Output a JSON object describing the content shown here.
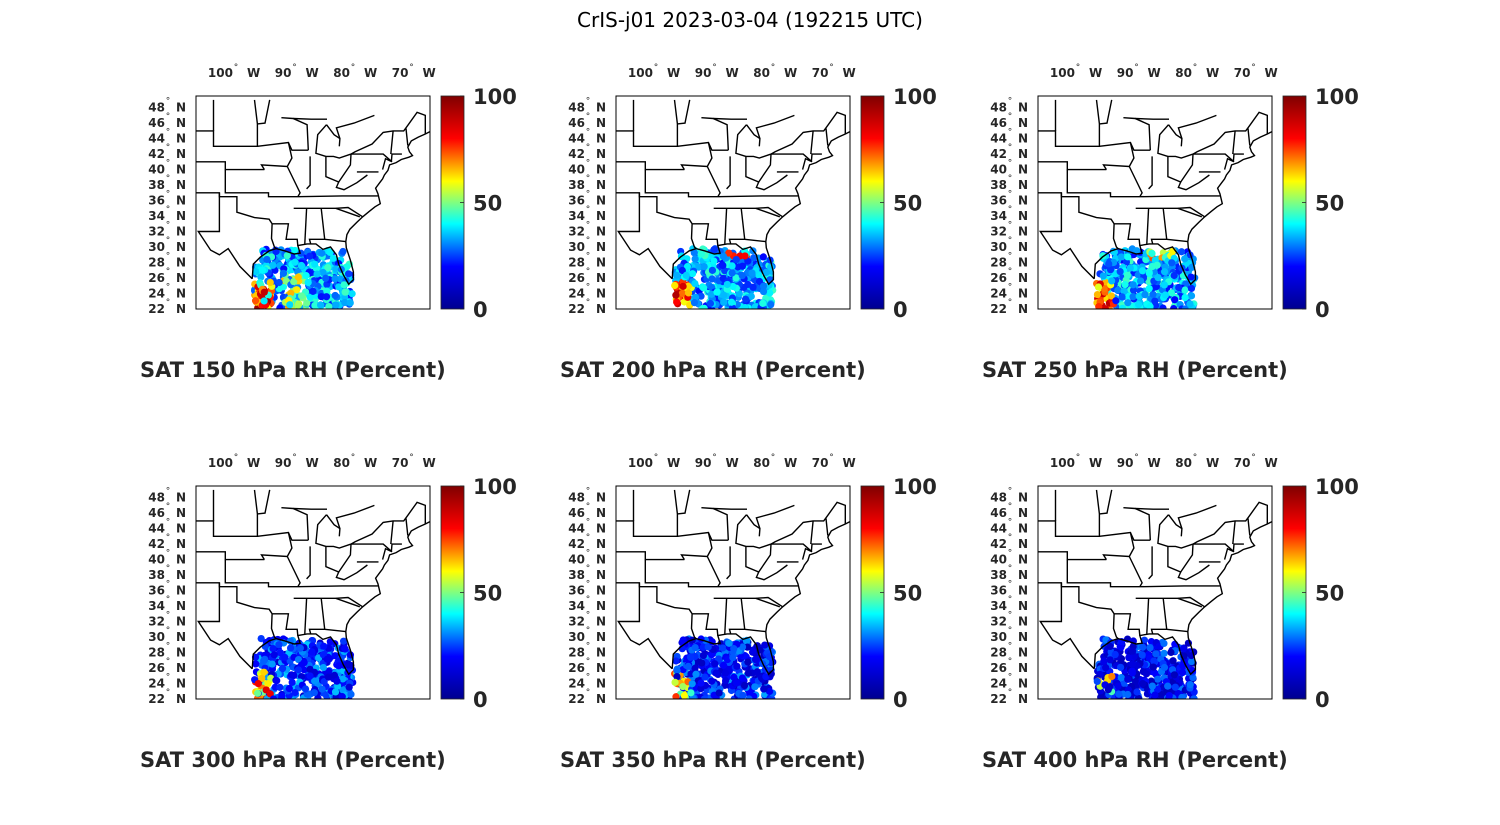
{
  "figure": {
    "title": "CrIS-j01 2023-03-04 (192215 UTC)"
  },
  "map": {
    "lon_ticks": [
      "100",
      "90",
      "80",
      "70"
    ],
    "lon_hemisphere": "W",
    "lat_ticks": [
      "48",
      "46",
      "44",
      "42",
      "40",
      "38",
      "36",
      "34",
      "32",
      "30",
      "28",
      "26",
      "24",
      "22"
    ],
    "lat_hemisphere": "N",
    "degree_symbol": "°",
    "lon_range": [
      -107,
      -67
    ],
    "lat_range": [
      22,
      49.5
    ]
  },
  "colorbar": {
    "ticks": [
      "0",
      "50",
      "100"
    ],
    "range": [
      0,
      100
    ],
    "colormap": "jet",
    "colors": [
      "#00008f",
      "#0000ff",
      "#00ffff",
      "#ffff00",
      "#ff0000",
      "#800000"
    ]
  },
  "panels": [
    {
      "label": "SAT 150 hPa RH (Percent)"
    },
    {
      "label": "SAT 200 hPa RH (Percent)"
    },
    {
      "label": "SAT 250 hPa RH (Percent)"
    },
    {
      "label": "SAT 300 hPa RH (Percent)"
    },
    {
      "label": "SAT 350 hPa RH (Percent)"
    },
    {
      "label": "SAT 400 hPa RH (Percent)"
    }
  ]
}
